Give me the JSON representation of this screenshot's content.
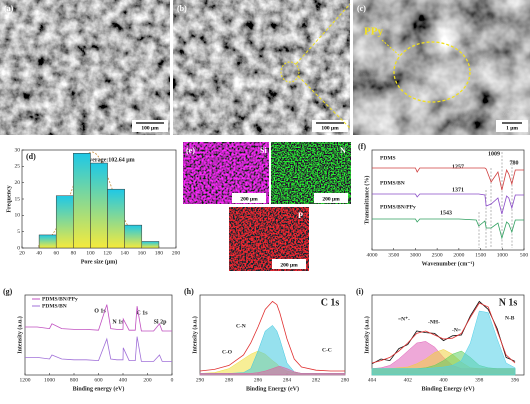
{
  "images": [
    {
      "label": "(a)",
      "scale_bar": "100 μm"
    },
    {
      "label": "(b)",
      "scale_bar": "100 μm"
    },
    {
      "label": "(c)",
      "scale_bar": "1 μm",
      "annotation": "PPy"
    }
  ],
  "eds": {
    "label": "(e)",
    "maps": [
      {
        "element": "Si",
        "scale_bar": "200 μm"
      },
      {
        "element": "N",
        "scale_bar": "200 μm"
      },
      {
        "element": "P",
        "scale_bar": "200 μm"
      }
    ]
  },
  "chart_data": [
    {
      "type": "histogram",
      "panel": "(d)",
      "xlabel": "Pore size (μm)",
      "ylabel": "Frequency",
      "annotations": [
        "Average:102.64 μm"
      ],
      "bins": [
        40,
        60,
        80,
        100,
        120,
        140,
        160,
        180
      ],
      "counts": [
        4,
        16,
        29,
        26,
        18,
        7,
        2
      ],
      "color": [
        "#f5ea3c",
        "#1ec8e6"
      ],
      "xlim": [
        20,
        200
      ],
      "xticks": [
        20,
        40,
        60,
        80,
        100,
        120,
        140,
        160,
        180,
        200
      ],
      "ylim": [
        0,
        30
      ],
      "yticks": [
        0,
        5,
        10,
        15,
        20,
        25,
        30
      ]
    },
    {
      "type": "line",
      "panel": "(f)",
      "xlabel": "Wavenumber (cm⁻¹)",
      "ylabel": "Transmittance (%)",
      "annotations": [
        "1009",
        "780",
        "1257",
        "1371",
        "1543"
      ],
      "x": [
        4000,
        3500,
        3000,
        2960,
        2900,
        2500,
        2000,
        1600,
        1543,
        1400,
        1371,
        1257,
        1100,
        1009,
        900,
        850,
        780,
        700,
        500
      ],
      "series": [
        {
          "name": "PDMS",
          "color": "#d04040",
          "values": [
            82,
            82,
            82,
            78,
            82,
            82,
            82,
            82,
            82,
            82,
            81,
            68,
            78,
            60,
            80,
            76,
            66,
            80,
            80
          ]
        },
        {
          "name": "PDMS/BN",
          "color": "#8a4cc8",
          "values": [
            56,
            56,
            56,
            53,
            56,
            56,
            56,
            56,
            56,
            55,
            44,
            46,
            52,
            36,
            54,
            52,
            42,
            55,
            55
          ]
        },
        {
          "name": "PDMS/BN/PPy",
          "color": "#30a060",
          "values": [
            31,
            31,
            31,
            28,
            31,
            31,
            31,
            30,
            24,
            29,
            22,
            22,
            27,
            12,
            28,
            26,
            18,
            30,
            30
          ]
        }
      ],
      "xlim": [
        4000,
        500
      ],
      "xticks": [
        4000,
        3500,
        3000,
        2500,
        2000,
        1500,
        1000,
        500
      ],
      "ylim": [
        0,
        100
      ]
    },
    {
      "type": "line",
      "panel": "(g)",
      "xlabel": "Binding energy (eV)",
      "ylabel": "Intensity (a.u.)",
      "annotations": [
        "O 1s",
        "N 1s",
        "C 1s",
        "Si 2p"
      ],
      "legend": "upper left",
      "x": [
        1200,
        1100,
        1000,
        980,
        900,
        800,
        700,
        600,
        532,
        500,
        450,
        400,
        398,
        350,
        300,
        285,
        250,
        200,
        150,
        102,
        80,
        0
      ],
      "series": [
        {
          "name": "PDMS/BN/PPy",
          "color": "#c050c0",
          "values": [
            60,
            60,
            58,
            64,
            58,
            57,
            57,
            56,
            88,
            58,
            57,
            57,
            70,
            56,
            56,
            86,
            55,
            55,
            55,
            64,
            55,
            55
          ]
        },
        {
          "name": "PDMS/BN",
          "color": "#a070d8",
          "values": [
            22,
            22,
            20,
            25,
            20,
            19,
            19,
            18,
            45,
            20,
            19,
            19,
            34,
            18,
            18,
            48,
            17,
            17,
            17,
            25,
            17,
            17
          ]
        }
      ],
      "xlim": [
        1200,
        0
      ],
      "xticks": [
        1200,
        1000,
        800,
        600,
        400,
        200,
        0
      ],
      "ylim": [
        0,
        100
      ]
    },
    {
      "type": "line",
      "panel": "(h)",
      "title": "C 1s",
      "xlabel": "Binding Energy (eV)",
      "ylabel": "Intensity (a.u.)",
      "x": [
        290,
        289,
        288,
        287,
        286.5,
        286,
        285.5,
        285,
        284.7,
        284.5,
        284,
        283.5,
        283,
        282,
        281,
        280
      ],
      "series": [
        {
          "color": "#e03030",
          "values": [
            5,
            7,
            12,
            25,
            40,
            60,
            82,
            92,
            88,
            78,
            45,
            20,
            10,
            6,
            5,
            5
          ]
        },
        {
          "name": "C-O",
          "color": "#f0e040",
          "fill": true,
          "values": [
            2,
            3,
            8,
            20,
            26,
            30,
            26,
            18,
            14,
            10,
            5,
            3,
            2,
            2,
            2,
            2
          ]
        },
        {
          "name": "C-N",
          "color": "#40c8e0",
          "fill": true,
          "values": [
            2,
            2,
            2,
            3,
            8,
            30,
            55,
            62,
            55,
            45,
            15,
            4,
            2,
            2,
            2,
            2
          ]
        },
        {
          "name": "C-C",
          "color": "#e060a0",
          "fill": true,
          "values": [
            2,
            2,
            2,
            2,
            2,
            3,
            5,
            8,
            10,
            11,
            8,
            4,
            2,
            2,
            2,
            2
          ]
        }
      ],
      "xlim": [
        290,
        280
      ],
      "xticks": [
        290,
        288,
        286,
        284,
        282,
        280
      ],
      "ylim": [
        0,
        100
      ]
    },
    {
      "type": "line",
      "panel": "(i)",
      "title": "N 1s",
      "xlabel": "Binding Energy (eV)",
      "ylabel": "Intensity (a.u.)",
      "x": [
        404,
        403.5,
        403,
        402.5,
        402,
        401.5,
        401,
        400.5,
        400,
        399.5,
        399,
        398.5,
        398,
        397.5,
        397,
        396.5,
        396
      ],
      "series": [
        {
          "color": "#111111",
          "values": [
            14,
            20,
            18,
            33,
            38,
            55,
            53,
            52,
            43,
            49,
            50,
            74,
            92,
            82,
            58,
            22,
            17
          ]
        },
        {
          "color": "#e03030",
          "values": [
            15,
            18,
            22,
            30,
            40,
            52,
            55,
            50,
            45,
            46,
            52,
            72,
            90,
            85,
            55,
            25,
            15
          ]
        },
        {
          "name": "=N⁺-",
          "color": "#e060b8",
          "fill": true,
          "values": [
            8,
            9,
            12,
            20,
            30,
            40,
            42,
            35,
            22,
            12,
            8,
            8,
            8,
            8,
            8,
            8,
            8
          ]
        },
        {
          "name": "-NH-",
          "color": "#f0d040",
          "fill": true,
          "values": [
            8,
            8,
            8,
            9,
            10,
            14,
            20,
            28,
            32,
            26,
            16,
            9,
            8,
            8,
            8,
            8,
            8
          ]
        },
        {
          "name": "-N=",
          "color": "#60d060",
          "fill": true,
          "values": [
            8,
            8,
            8,
            8,
            8,
            8,
            9,
            12,
            18,
            26,
            30,
            22,
            12,
            9,
            8,
            8,
            8
          ]
        },
        {
          "name": "N-B",
          "color": "#50d0e8",
          "fill": true,
          "values": [
            8,
            8,
            8,
            8,
            8,
            8,
            8,
            9,
            10,
            12,
            18,
            40,
            80,
            78,
            45,
            15,
            9
          ]
        }
      ],
      "xlim": [
        404,
        395.5
      ],
      "xticks": [
        404,
        402,
        400,
        398,
        396
      ],
      "ylim": [
        0,
        100
      ]
    }
  ]
}
